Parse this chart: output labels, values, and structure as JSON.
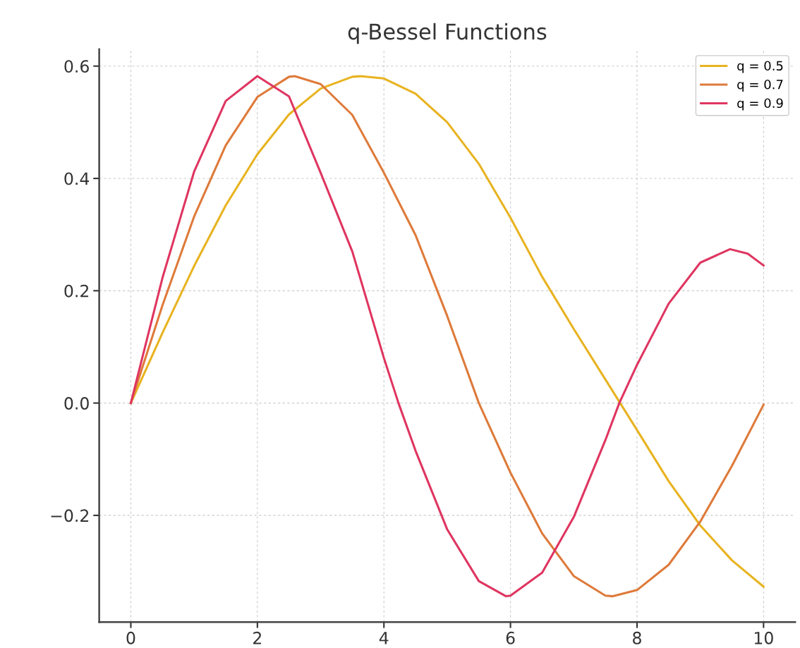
{
  "chart_data": {
    "type": "line",
    "title": "q-Bessel Functions",
    "series": [
      {
        "name": "q = 0.5",
        "color": "#e8b320",
        "x": [
          0,
          0.5,
          1,
          1.5,
          2,
          2.5,
          3,
          3.5,
          3.63,
          4,
          4.5,
          5,
          5.5,
          6,
          6.5,
          7,
          7.5,
          8,
          8.5,
          9,
          9.5,
          10
        ],
        "values": [
          0,
          0.125,
          0.244,
          0.352,
          0.443,
          0.514,
          0.56,
          0.581,
          0.582,
          0.578,
          0.551,
          0.5,
          0.426,
          0.33,
          0.225,
          0.132,
          0.042,
          -0.048,
          -0.139,
          -0.218,
          -0.28,
          -0.327
        ]
      },
      {
        "name": "q = 0.7",
        "color": "#de7a3a",
        "x": [
          0,
          0.5,
          1,
          1.5,
          2,
          2.5,
          2.59,
          3,
          3.5,
          4,
          4.5,
          5,
          5.5,
          6,
          6.5,
          7,
          7.5,
          7.62,
          8,
          8.5,
          9,
          9.5,
          10
        ],
        "values": [
          0,
          0.174,
          0.332,
          0.459,
          0.545,
          0.581,
          0.582,
          0.568,
          0.513,
          0.41,
          0.299,
          0.155,
          0,
          -0.124,
          -0.232,
          -0.308,
          -0.343,
          -0.344,
          -0.333,
          -0.288,
          -0.211,
          -0.112,
          -0.003
        ]
      },
      {
        "name": "q = 0.9",
        "color": "#df3560",
        "x": [
          0,
          0.5,
          1,
          1.5,
          2,
          2.5,
          3,
          3.5,
          4,
          4.23,
          4.5,
          5,
          5.5,
          5.93,
          6,
          6.5,
          7,
          7.5,
          7.72,
          8,
          8.5,
          9,
          9.47,
          9.75,
          10
        ],
        "values": [
          0,
          0.223,
          0.412,
          0.538,
          0.582,
          0.546,
          0.41,
          0.27,
          0.08,
          0,
          -0.085,
          -0.225,
          -0.317,
          -0.344,
          -0.343,
          -0.302,
          -0.203,
          -0.066,
          0,
          0.068,
          0.177,
          0.25,
          0.274,
          0.266,
          0.245
        ]
      }
    ],
    "xlim": [
      -0.5,
      10.5
    ],
    "xticks": [
      0,
      2,
      4,
      6,
      8,
      10
    ],
    "ylim": [
      -0.39,
      0.63
    ],
    "yticks": [
      {
        "value": -0.2,
        "label": "−0.2"
      },
      {
        "value": 0,
        "label": "0.0"
      },
      {
        "value": 0.2,
        "label": "0.2"
      },
      {
        "value": 0.4,
        "label": "0.4"
      },
      {
        "value": 0.6,
        "label": "0.6"
      }
    ],
    "grid": true,
    "legend": "top right",
    "marker": "none",
    "line_style": "solid"
  }
}
